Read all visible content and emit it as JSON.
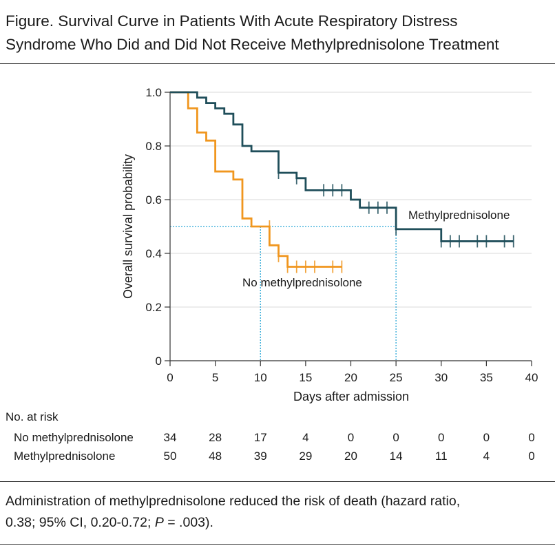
{
  "figure": {
    "title_line1": "Figure. Survival Curve in Patients With Acute Respiratory Distress",
    "title_line2": "Syndrome Who Did and Did Not Receive Methylprednisolone Treatment"
  },
  "chart_data": {
    "type": "line",
    "subtype": "kaplan-meier-step",
    "xlabel": "Days after admission",
    "ylabel": "Overall survival probability",
    "xlim": [
      0,
      40
    ],
    "ylim": [
      0,
      1.0
    ],
    "xticks": [
      0,
      5,
      10,
      15,
      20,
      25,
      30,
      35,
      40
    ],
    "xtick_labels": [
      "0",
      "5",
      "10",
      "15",
      "20",
      "25",
      "30",
      "35",
      "40"
    ],
    "yticks": [
      0,
      0.2,
      0.4,
      0.6,
      0.8,
      1.0
    ],
    "ytick_labels": [
      "0",
      "0.2",
      "0.4",
      "0.6",
      "0.8",
      "1.0"
    ],
    "grid": "horizontal",
    "median_reference_level": 0.5,
    "median_survival_days": {
      "No methylprednisolone": 10,
      "Methylprednisolone": 25
    },
    "series": [
      {
        "name": "Methylprednisolone",
        "label": "Methylprednisolone",
        "color": "#1f4e5a",
        "steps": [
          [
            0,
            1.0
          ],
          [
            3,
            0.98
          ],
          [
            4,
            0.96
          ],
          [
            5,
            0.94
          ],
          [
            6,
            0.92
          ],
          [
            7,
            0.88
          ],
          [
            8,
            0.8
          ],
          [
            9,
            0.78
          ],
          [
            12,
            0.7
          ],
          [
            14,
            0.68
          ],
          [
            15,
            0.635
          ],
          [
            20,
            0.6
          ],
          [
            21,
            0.57
          ],
          [
            25,
            0.49
          ],
          [
            30,
            0.445
          ],
          [
            38,
            0.445
          ]
        ],
        "censored": [
          [
            12,
            0.7
          ],
          [
            14,
            0.68
          ],
          [
            17,
            0.635
          ],
          [
            18,
            0.635
          ],
          [
            19,
            0.635
          ],
          [
            22,
            0.57
          ],
          [
            23,
            0.57
          ],
          [
            24,
            0.57
          ],
          [
            25,
            0.49
          ],
          [
            30,
            0.445
          ],
          [
            31,
            0.445
          ],
          [
            32,
            0.445
          ],
          [
            34,
            0.445
          ],
          [
            35,
            0.445
          ],
          [
            37,
            0.445
          ],
          [
            38,
            0.445
          ]
        ]
      },
      {
        "name": "No methylprednisolone",
        "label": "No methylprednisolone",
        "color": "#f0961e",
        "steps": [
          [
            0,
            1.0
          ],
          [
            2,
            0.94
          ],
          [
            3,
            0.85
          ],
          [
            4,
            0.82
          ],
          [
            5,
            0.705
          ],
          [
            7,
            0.675
          ],
          [
            8,
            0.53
          ],
          [
            9,
            0.5
          ],
          [
            11,
            0.43
          ],
          [
            12,
            0.39
          ],
          [
            13,
            0.35
          ],
          [
            19,
            0.35
          ]
        ],
        "censored": [
          [
            11,
            0.5
          ],
          [
            12,
            0.39
          ],
          [
            13,
            0.35
          ],
          [
            14,
            0.35
          ],
          [
            15,
            0.35
          ],
          [
            16,
            0.35
          ],
          [
            18,
            0.35
          ],
          [
            19,
            0.35
          ]
        ]
      }
    ]
  },
  "risk_table": {
    "heading": "No. at risk",
    "rows": [
      {
        "label": "No methylprednisolone",
        "values": [
          "34",
          "28",
          "17",
          "4",
          "0",
          "0",
          "0",
          "0",
          "0"
        ]
      },
      {
        "label": "Methylprednisolone",
        "values": [
          "50",
          "48",
          "39",
          "29",
          "20",
          "14",
          "11",
          "4",
          "0"
        ]
      }
    ]
  },
  "caption": {
    "text_part1": "Administration of methylprednisolone reduced the risk of death (hazard ratio,",
    "text_part2": "0.38; 95% CI, 0.20-0.72; ",
    "p_label": "P",
    "text_part3": " = .003)."
  }
}
